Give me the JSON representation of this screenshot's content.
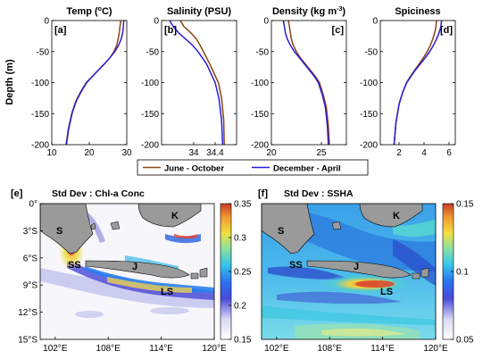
{
  "colors": {
    "june_oct": "#8B4513",
    "dec_apr": "#2B1BD8",
    "land": "#9A9A9A"
  },
  "chart_data": [
    {
      "type": "line",
      "panel": "[a]",
      "title": "Temp (°C)",
      "title_main": "Temp (",
      "title_sup": "o",
      "title_end": "C)",
      "ylabel": "Depth (m)",
      "xlim": [
        10,
        30
      ],
      "ylim": [
        -200,
        0
      ],
      "xticks": [
        "10",
        "20",
        "30"
      ],
      "yticks": [
        "0",
        "-50",
        "-100",
        "-150",
        "-200"
      ],
      "series": [
        {
          "name": "June - October",
          "color": "#8B4513",
          "x": [
            28.4,
            28.2,
            28.0,
            27.7,
            27.3,
            26.6,
            25.5,
            24.0,
            22.4,
            20.8,
            19.2,
            17.7,
            16.4,
            15.3,
            14.4,
            13.8
          ],
          "y": [
            0,
            -10,
            -20,
            -30,
            -40,
            -50,
            -60,
            -70,
            -80,
            -90,
            -100,
            -115,
            -130,
            -150,
            -175,
            -200
          ]
        },
        {
          "name": "December - April",
          "color": "#2B1BD8",
          "x": [
            29.2,
            29.1,
            28.9,
            28.5,
            27.8,
            26.8,
            25.5,
            24.0,
            22.4,
            20.8,
            19.3,
            17.8,
            16.5,
            15.4,
            14.5,
            13.9
          ],
          "y": [
            0,
            -10,
            -20,
            -30,
            -40,
            -50,
            -60,
            -70,
            -80,
            -90,
            -100,
            -115,
            -130,
            -150,
            -175,
            -200
          ]
        }
      ]
    },
    {
      "type": "line",
      "panel": "[b]",
      "title": "Salinity (PSU)",
      "xlim": [
        33.4,
        34.8
      ],
      "ylim": [
        -200,
        0
      ],
      "xticks": [
        "34",
        "34.4"
      ],
      "xtick_values": [
        34.0,
        34.4
      ],
      "series": [
        {
          "name": "June - October",
          "color": "#8B4513",
          "x": [
            33.75,
            33.82,
            33.95,
            34.05,
            34.12,
            34.18,
            34.24,
            34.3,
            34.38,
            34.46,
            34.52,
            34.56,
            34.57
          ],
          "y": [
            0,
            -10,
            -20,
            -30,
            -40,
            -50,
            -60,
            -70,
            -85,
            -100,
            -125,
            -160,
            -200
          ]
        },
        {
          "name": "December - April",
          "color": "#2B1BD8",
          "x": [
            33.55,
            33.62,
            33.72,
            33.85,
            33.98,
            34.08,
            34.16,
            34.24,
            34.32,
            34.4,
            34.47,
            34.52,
            34.54
          ],
          "y": [
            0,
            -10,
            -20,
            -30,
            -40,
            -50,
            -60,
            -70,
            -85,
            -100,
            -125,
            -160,
            -200
          ]
        }
      ]
    },
    {
      "type": "line",
      "panel": "[c]",
      "title": "Density (kg m⁻³)",
      "title_main": "Density (kg m",
      "title_sup": "-3",
      "title_end": ")",
      "xlim": [
        20,
        27.5
      ],
      "ylim": [
        -200,
        0
      ],
      "xticks": [
        "20",
        "25"
      ],
      "xtick_values": [
        20,
        25
      ],
      "series": [
        {
          "name": "June - October",
          "color": "#8B4513",
          "x": [
            21.7,
            21.8,
            21.9,
            22.0,
            22.2,
            22.5,
            22.9,
            23.4,
            23.9,
            24.4,
            24.8,
            25.2,
            25.5,
            25.7,
            25.8
          ],
          "y": [
            0,
            -10,
            -20,
            -30,
            -40,
            -50,
            -60,
            -70,
            -80,
            -90,
            -100,
            -120,
            -140,
            -170,
            -200
          ]
        },
        {
          "name": "December - April",
          "color": "#2B1BD8",
          "x": [
            21.2,
            21.3,
            21.4,
            21.6,
            21.9,
            22.3,
            22.8,
            23.3,
            23.8,
            24.3,
            24.7,
            25.1,
            25.4,
            25.6,
            25.7
          ],
          "y": [
            0,
            -10,
            -20,
            -30,
            -40,
            -50,
            -60,
            -70,
            -80,
            -90,
            -100,
            -120,
            -140,
            -170,
            -200
          ]
        }
      ]
    },
    {
      "type": "line",
      "panel": "[d]",
      "title": "Spiciness",
      "xlim": [
        0.5,
        6.5
      ],
      "ylim": [
        -200,
        0
      ],
      "xticks": [
        "2",
        "4",
        "6"
      ],
      "xtick_values": [
        2,
        4,
        6
      ],
      "series": [
        {
          "name": "June - October",
          "color": "#8B4513",
          "x": [
            5.0,
            4.95,
            4.85,
            4.7,
            4.5,
            4.25,
            3.95,
            3.6,
            3.25,
            2.9,
            2.6,
            2.3,
            2.0,
            1.75,
            1.6
          ],
          "y": [
            0,
            -10,
            -20,
            -30,
            -40,
            -50,
            -60,
            -70,
            -80,
            -90,
            -100,
            -115,
            -135,
            -165,
            -200
          ]
        },
        {
          "name": "December - April",
          "color": "#2B1BD8",
          "x": [
            5.4,
            5.35,
            5.2,
            5.0,
            4.75,
            4.45,
            4.1,
            3.7,
            3.3,
            2.95,
            2.62,
            2.3,
            2.0,
            1.75,
            1.6
          ],
          "y": [
            0,
            -10,
            -20,
            -30,
            -40,
            -50,
            -60,
            -70,
            -80,
            -90,
            -100,
            -115,
            -135,
            -165,
            -200
          ]
        }
      ]
    },
    {
      "type": "heatmap",
      "panel": "[e]",
      "title": "Std Dev : Chl-a Conc",
      "xticks": [
        "102°E",
        "108°E",
        "114°E",
        "120°E"
      ],
      "yticks": [
        "0°",
        "3°S",
        "6°S",
        "9°S",
        "12°S",
        "15°S"
      ],
      "colorbar_range": [
        0.15,
        0.35
      ],
      "colorbar_ticks": [
        "0.35",
        "0.3",
        "0.25",
        "0.2",
        "0.15"
      ],
      "labels": [
        "S",
        "K",
        "SS",
        "J",
        "LS"
      ]
    },
    {
      "type": "heatmap",
      "panel": "[f]",
      "title": "Std Dev : SSHA",
      "xticks": [
        "102°E",
        "108°E",
        "114°E",
        "120°E"
      ],
      "colorbar_range": [
        0.05,
        0.15
      ],
      "colorbar_ticks": [
        "0.15",
        "0.1",
        "0.05"
      ],
      "labels": [
        "S",
        "K",
        "SS",
        "J",
        "LS"
      ]
    }
  ],
  "legend": {
    "items": [
      "June - October",
      "December - April"
    ]
  }
}
